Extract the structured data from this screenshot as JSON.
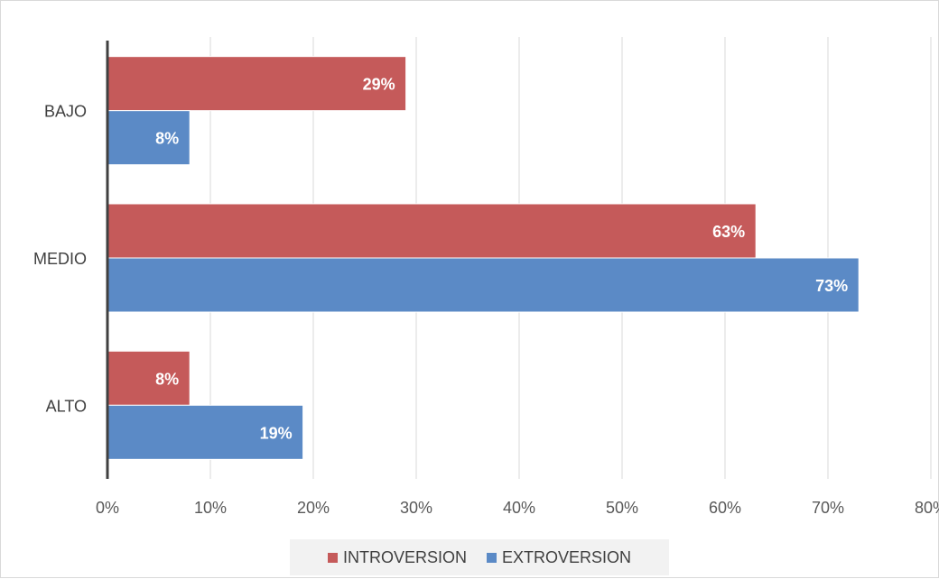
{
  "chart_data": {
    "type": "bar",
    "orientation": "horizontal",
    "categories": [
      "BAJO",
      "MEDIO",
      "ALTO"
    ],
    "series": [
      {
        "name": "INTROVERSION",
        "values": [
          29,
          63,
          8
        ],
        "labels": [
          "29%",
          "63%",
          "8%"
        ],
        "color": "#c55a5a"
      },
      {
        "name": "EXTROVERSION",
        "values": [
          8,
          73,
          19
        ],
        "labels": [
          "8%",
          "73%",
          "19%"
        ],
        "color": "#5b8ac6"
      }
    ],
    "x_ticks": [
      "0%",
      "10%",
      "20%",
      "30%",
      "40%",
      "50%",
      "60%",
      "70%",
      "80%"
    ],
    "xlim": [
      0,
      80
    ],
    "grid": "vertical",
    "legend_position": "bottom",
    "title": "",
    "xlabel": "",
    "ylabel": ""
  }
}
